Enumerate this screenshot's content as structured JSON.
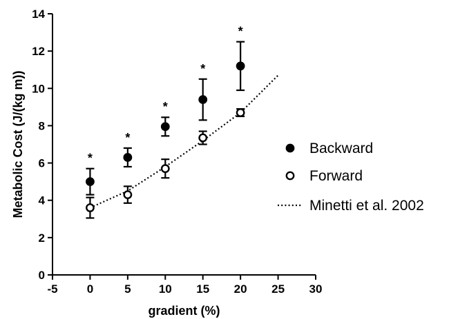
{
  "chart_data": {
    "type": "scatter",
    "xlabel": "gradient (%)",
    "ylabel": "Metabolic Cost (J/(kg m))",
    "xlim": [
      -5,
      30
    ],
    "ylim": [
      0,
      14
    ],
    "xticks": [
      "-5",
      "0",
      "5",
      "10",
      "15",
      "20",
      "25",
      "30"
    ],
    "yticks": [
      "0",
      "2",
      "4",
      "6",
      "8",
      "10",
      "12",
      "14"
    ],
    "grid": false,
    "legend_position": "right",
    "series": [
      {
        "name": "Backward",
        "marker": "filled-circle",
        "points": [
          {
            "x": 0,
            "y": 5.0,
            "err": 0.7
          },
          {
            "x": 5,
            "y": 6.3,
            "err": 0.5
          },
          {
            "x": 10,
            "y": 7.95,
            "err": 0.5
          },
          {
            "x": 15,
            "y": 9.4,
            "err": 1.1
          },
          {
            "x": 20,
            "y": 11.2,
            "err": 1.3
          }
        ]
      },
      {
        "name": "Forward",
        "marker": "open-circle",
        "points": [
          {
            "x": 0,
            "y": 3.6,
            "err": 0.55
          },
          {
            "x": 5,
            "y": 4.3,
            "err": 0.45
          },
          {
            "x": 10,
            "y": 5.7,
            "err": 0.5
          },
          {
            "x": 15,
            "y": 7.35,
            "err": 0.35
          },
          {
            "x": 20,
            "y": 8.7,
            "err": 0.2
          }
        ]
      },
      {
        "name": "Minetti et al. 2002",
        "style": "dotted-line",
        "x": [
          0,
          5,
          10,
          15,
          20,
          25
        ],
        "y": [
          3.6,
          4.5,
          5.8,
          7.2,
          8.7,
          10.7
        ]
      }
    ],
    "annotations": [
      {
        "text": "*",
        "x": 0
      },
      {
        "text": "*",
        "x": 5
      },
      {
        "text": "*",
        "x": 10
      },
      {
        "text": "*",
        "x": 15
      },
      {
        "text": "*",
        "x": 20
      }
    ]
  }
}
